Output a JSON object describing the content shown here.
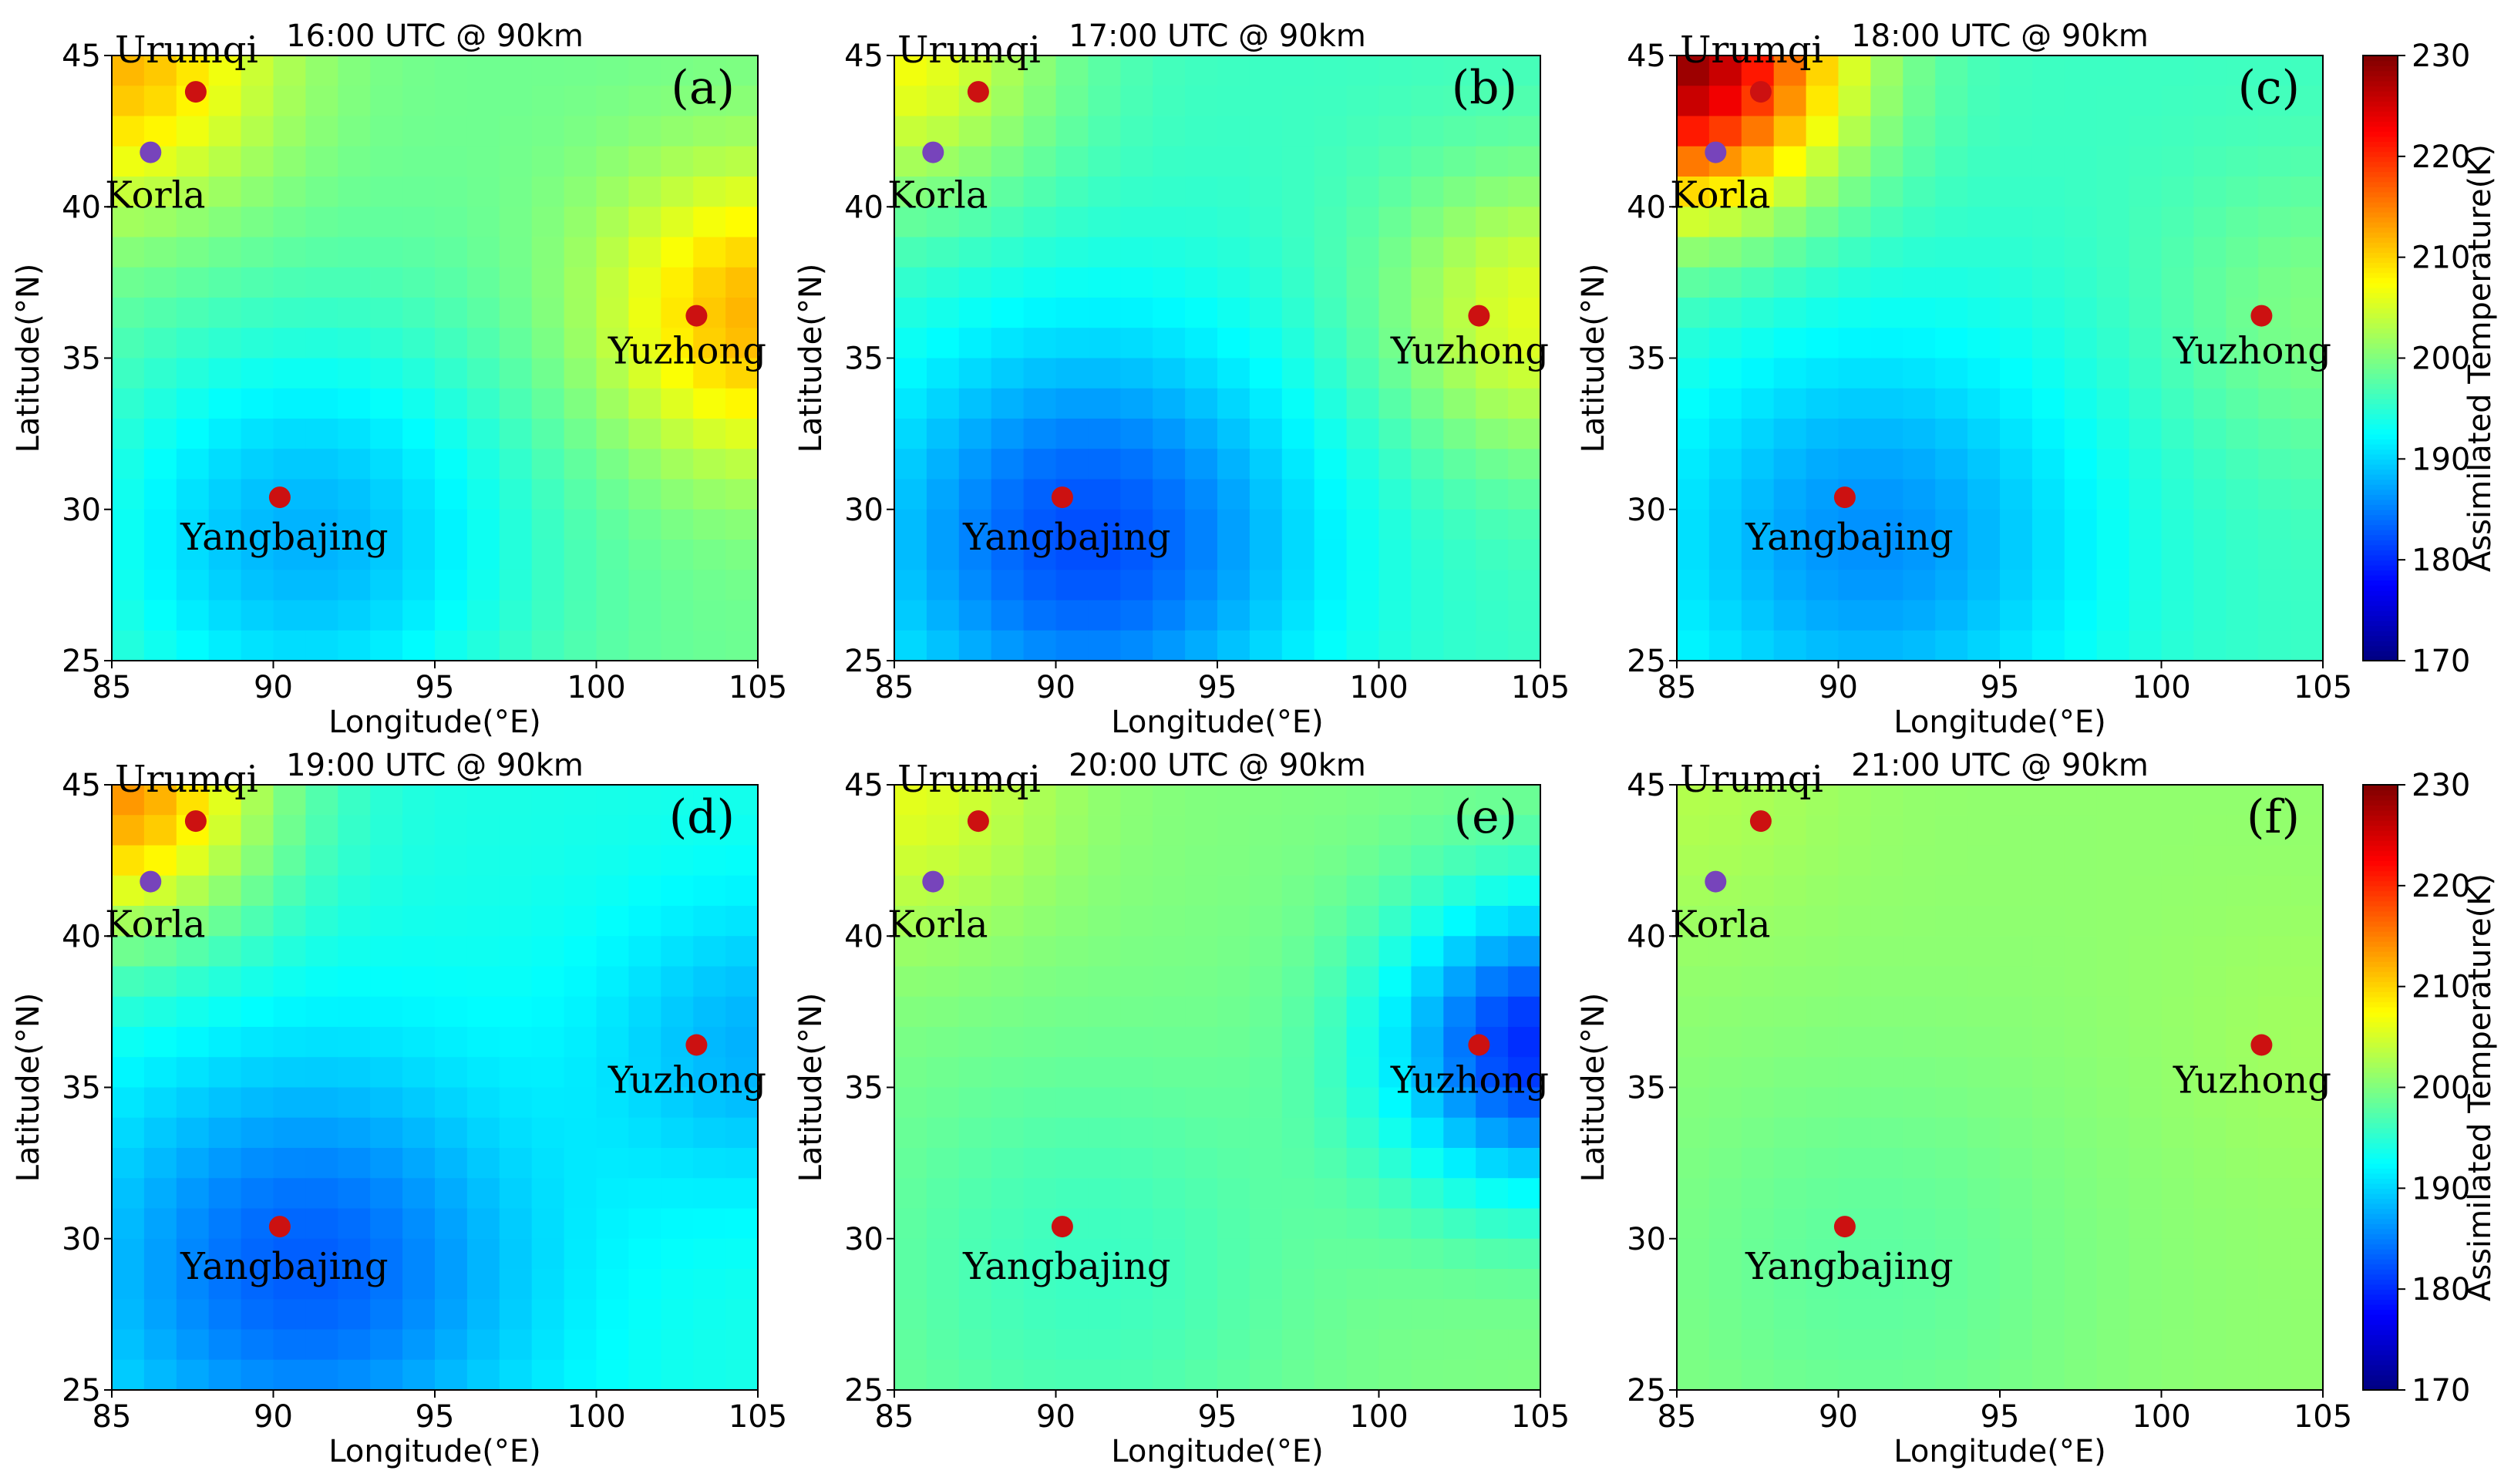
{
  "chart_data": {
    "type": "heatmap",
    "panels": [
      {
        "id": "a",
        "title": "16:00 UTC @ 90km",
        "panel_label": "(a)",
        "field": {
          "peak_nw": 212,
          "peak_ne": 212,
          "trough": 188,
          "base": 199
        }
      },
      {
        "id": "b",
        "title": "17:00 UTC @ 90km",
        "panel_label": "(b)",
        "field": {
          "peak_nw": 207,
          "peak_ne": 206,
          "trough": 182,
          "base": 196
        }
      },
      {
        "id": "c",
        "title": "18:00 UTC @ 90km",
        "panel_label": "(c)",
        "field": {
          "peak_nw": 229,
          "peak_ne": 200,
          "trough": 186,
          "base": 196
        }
      },
      {
        "id": "d",
        "title": "19:00 UTC @ 90km",
        "panel_label": "(d)",
        "field": {
          "peak_nw": 214,
          "peak_ne": 188,
          "trough": 183,
          "base": 194
        }
      },
      {
        "id": "e",
        "title": "20:00 UTC @ 90km",
        "panel_label": "(e)",
        "field": {
          "peak_nw": 206,
          "peak_ne": 180,
          "trough": 196,
          "base": 200
        }
      },
      {
        "id": "f",
        "title": "21:00 UTC @ 90km",
        "panel_label": "(f)",
        "field": {
          "peak_nw": 203,
          "peak_ne": 202,
          "trough": 198,
          "base": 201
        }
      }
    ],
    "xlabel": "Longitude(°E)",
    "ylabel": "Latitude(°N)",
    "xlim": [
      85,
      105
    ],
    "ylim": [
      25,
      45
    ],
    "xticks": [
      "85",
      "90",
      "95",
      "100",
      "105"
    ],
    "yticks": [
      "25",
      "30",
      "35",
      "40",
      "45"
    ],
    "stations": [
      {
        "name": "Urumqi",
        "lon": 87.6,
        "lat": 43.8,
        "color": "#cc1111"
      },
      {
        "name": "Korla",
        "lon": 86.2,
        "lat": 41.8,
        "color": "#7744bb"
      },
      {
        "name": "Yuzhong",
        "lon": 103.1,
        "lat": 36.4,
        "color": "#cc1111"
      },
      {
        "name": "Yangbajing",
        "lon": 90.2,
        "lat": 30.4,
        "color": "#cc1111"
      }
    ],
    "colorbar": {
      "label": "Assimilated Temperature(K)",
      "min": 170,
      "max": 230,
      "ticks": [
        "170",
        "180",
        "190",
        "200",
        "210",
        "220",
        "230"
      ],
      "colormap": "jet"
    }
  }
}
